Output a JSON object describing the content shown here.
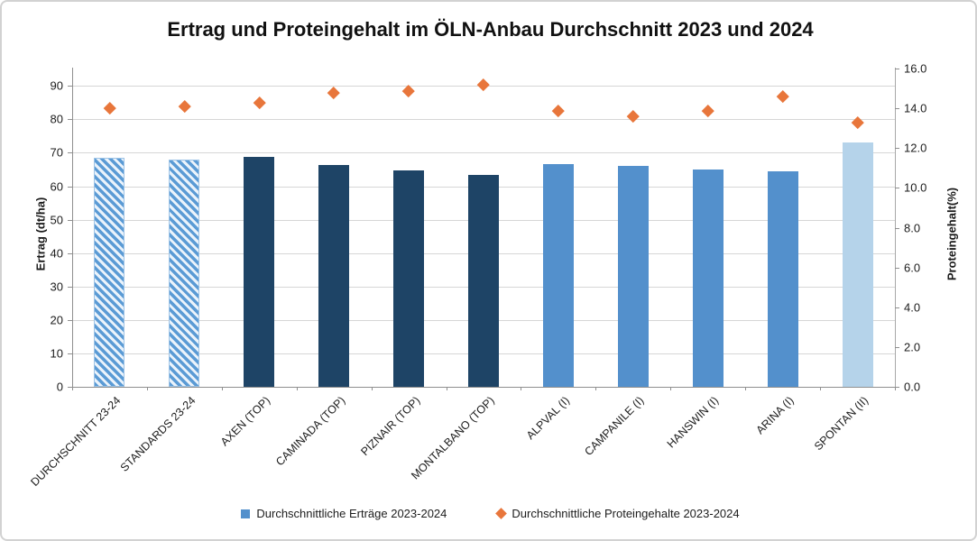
{
  "title": "Ertrag und Proteingehalt im ÖLN-Anbau Durchschnitt 2023 und 2024",
  "chart_data": {
    "type": "bar",
    "combo": "bar + scatter (diamond markers), dual y-axis",
    "title": "Ertrag und Proteingehalt im ÖLN-Anbau Durchschnitt 2023 und 2024",
    "categories": [
      "DURCHSCHNITT 23-24",
      "STANDARDS 23-24",
      "AXEN (TOP)",
      "CAMINADA (TOP)",
      "PIZNAIR (TOP)",
      "MONTALBANO (TOP)",
      "ALPVAL (I)",
      "CAMPANILE (I)",
      "HANSWIN (I)",
      "ARINA (I)",
      "SPONTAN (II)"
    ],
    "series": [
      {
        "name": "Durchschnittliche Erträge 2023-2024",
        "type": "bar",
        "axis": "left",
        "values": [
          68.5,
          68.0,
          68.8,
          66.4,
          64.8,
          63.4,
          66.6,
          66.0,
          65.1,
          64.4,
          73.0
        ],
        "bar_styles": [
          "hatched",
          "hatched",
          "dark",
          "dark",
          "dark",
          "dark",
          "medium",
          "medium",
          "medium",
          "medium",
          "light"
        ]
      },
      {
        "name": "Durchschnittliche Proteingehalte 2023-2024",
        "type": "scatter",
        "marker": "diamond",
        "axis": "right",
        "values": [
          14.0,
          14.1,
          14.3,
          14.8,
          14.9,
          15.2,
          13.9,
          13.6,
          13.9,
          14.6,
          13.3
        ]
      }
    ],
    "left_axis": {
      "label": "Ertrag (dt/ha)",
      "min": 0,
      "max": 90,
      "step": 10,
      "tick_labels": [
        "0",
        "10",
        "20",
        "30",
        "40",
        "50",
        "60",
        "70",
        "80",
        "90"
      ]
    },
    "right_axis": {
      "label": "Proteingehalt(%)",
      "min": 0,
      "max": 16,
      "step": 2,
      "tick_labels": [
        "0.0",
        "2.0",
        "4.0",
        "6.0",
        "8.0",
        "10.0",
        "12.0",
        "14.0",
        "16.0"
      ]
    },
    "grid": true,
    "legend_position": "bottom"
  },
  "legend": {
    "items": [
      {
        "label": "Durchschnittliche Erträge 2023-2024",
        "marker": "square",
        "color": "#5390cc"
      },
      {
        "label": "Durchschnittliche Proteingehalte 2023-2024",
        "marker": "diamond",
        "color": "#e8763b"
      }
    ]
  },
  "colors": {
    "bar_dark": "#1e4466",
    "bar_medium": "#5390cc",
    "bar_light": "#b5d3ea",
    "hatch_stripe": "#5b9bd5",
    "hatch_background": "#ebf3fb",
    "marker_orange": "#e8763b",
    "gridline": "#d6d6d6",
    "axis_line": "#8f8f8f",
    "text": "#1c1c1c"
  }
}
